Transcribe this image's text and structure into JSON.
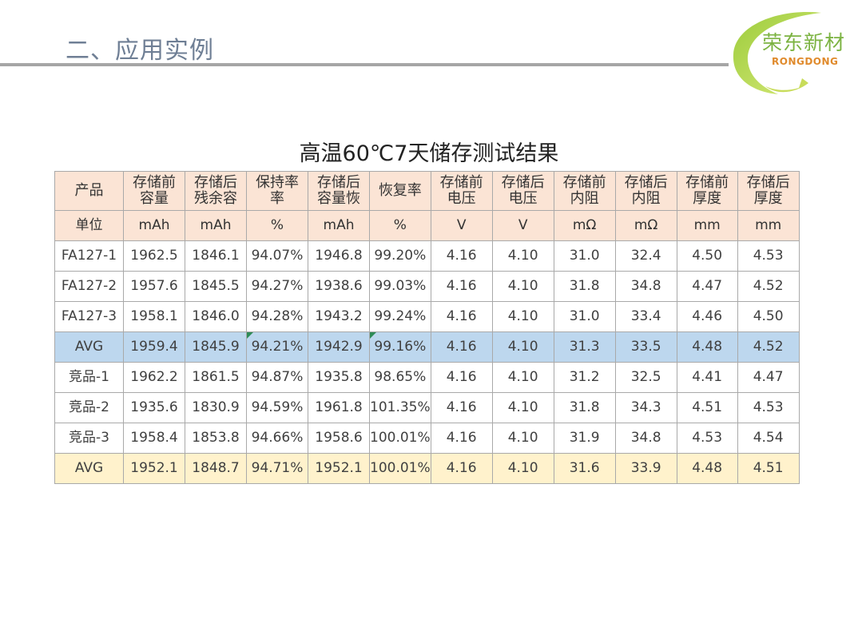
{
  "slide_title": "二、应用实例",
  "logo": {
    "name_cn": "荣东新材",
    "name_en": "RONGDONG"
  },
  "table_title": "高温60℃7天储存测试结果",
  "table": {
    "headers": [
      "产品",
      "存储前\n容量",
      "存储后\n残余容",
      "保持率\n率",
      "存储后\n容量恢",
      "恢复率",
      "存储前\n电压",
      "存储后\n电压",
      "存储前\n内阻",
      "存储后\n内阻",
      "存储前\n厚度",
      "存储后\n厚度"
    ],
    "units": [
      "单位",
      "mAh",
      "mAh",
      "%",
      "mAh",
      "%",
      "V",
      "V",
      "mΩ",
      "mΩ",
      "mm",
      "mm"
    ],
    "rows": [
      [
        "FA127-1",
        "1962.5",
        "1846.1",
        "94.07%",
        "1946.8",
        "99.20%",
        "4.16",
        "4.10",
        "31.0",
        "32.4",
        "4.50",
        "4.53"
      ],
      [
        "FA127-2",
        "1957.6",
        "1845.5",
        "94.27%",
        "1938.6",
        "99.03%",
        "4.16",
        "4.10",
        "31.8",
        "34.8",
        "4.47",
        "4.52"
      ],
      [
        "FA127-3",
        "1958.1",
        "1846.0",
        "94.28%",
        "1943.2",
        "99.24%",
        "4.16",
        "4.10",
        "31.0",
        "33.4",
        "4.46",
        "4.50"
      ],
      [
        "AVG",
        "1959.4",
        "1845.9",
        "94.21%",
        "1942.9",
        "99.16%",
        "4.16",
        "4.10",
        "31.3",
        "33.5",
        "4.48",
        "4.52"
      ],
      [
        "竞品-1",
        "1962.2",
        "1861.5",
        "94.87%",
        "1935.8",
        "98.65%",
        "4.16",
        "4.10",
        "31.2",
        "32.5",
        "4.41",
        "4.47"
      ],
      [
        "竞品-2",
        "1935.6",
        "1830.9",
        "94.59%",
        "1961.8",
        "101.35%",
        "4.16",
        "4.10",
        "31.8",
        "34.3",
        "4.51",
        "4.53"
      ],
      [
        "竞品-3",
        "1958.4",
        "1853.8",
        "94.66%",
        "1958.6",
        "100.01%",
        "4.16",
        "4.10",
        "31.9",
        "34.8",
        "4.53",
        "4.54"
      ],
      [
        "AVG",
        "1952.1",
        "1848.7",
        "94.71%",
        "1952.1",
        "100.01%",
        "4.16",
        "4.10",
        "31.6",
        "33.9",
        "4.48",
        "4.51"
      ]
    ]
  },
  "colors": {
    "header_bg": "#fbe4d5",
    "avg_blue": "#bdd7ee",
    "avg_yellow": "#fff2cc",
    "title_gray": "#6f7f95",
    "logo_green": "#7cb342",
    "logo_orange": "#e08a2c"
  }
}
